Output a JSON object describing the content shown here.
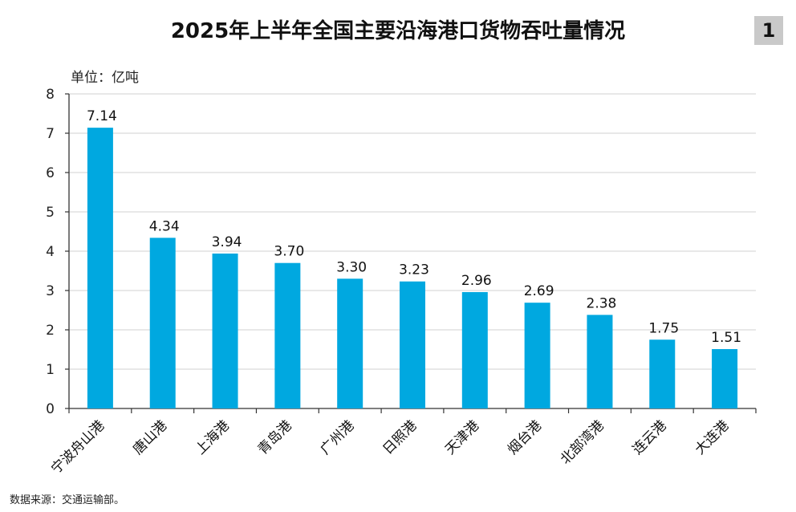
{
  "header": {
    "title": "2025年上半年全国主要沿海港口货物吞吐量情况",
    "badge": "1"
  },
  "unit_label": "单位：亿吨",
  "source_note": "数据来源：交通运输部。",
  "colors": {
    "bar": "#00a8e0",
    "grid": "#d9d9d9",
    "axis": "#333333"
  },
  "chart_data": {
    "type": "bar",
    "title": "2025年上半年全国主要沿海港口货物吞吐量情况",
    "xlabel": "",
    "ylabel": "单位：亿吨",
    "ylim": [
      0,
      8
    ],
    "yticks": [
      0,
      1,
      2,
      3,
      4,
      5,
      6,
      7,
      8
    ],
    "grid": true,
    "categories": [
      "宁波舟山港",
      "唐山港",
      "上海港",
      "青岛港",
      "广州港",
      "日照港",
      "天津港",
      "烟台港",
      "北部湾港",
      "连云港",
      "大连港"
    ],
    "values": [
      7.14,
      4.34,
      3.94,
      3.7,
      3.3,
      3.23,
      2.96,
      2.69,
      2.38,
      1.75,
      1.51
    ],
    "labels": [
      "7.14",
      "4.34",
      "3.94",
      "3.70",
      "3.30",
      "3.23",
      "2.96",
      "2.69",
      "2.38",
      "1.75",
      "1.51"
    ]
  }
}
